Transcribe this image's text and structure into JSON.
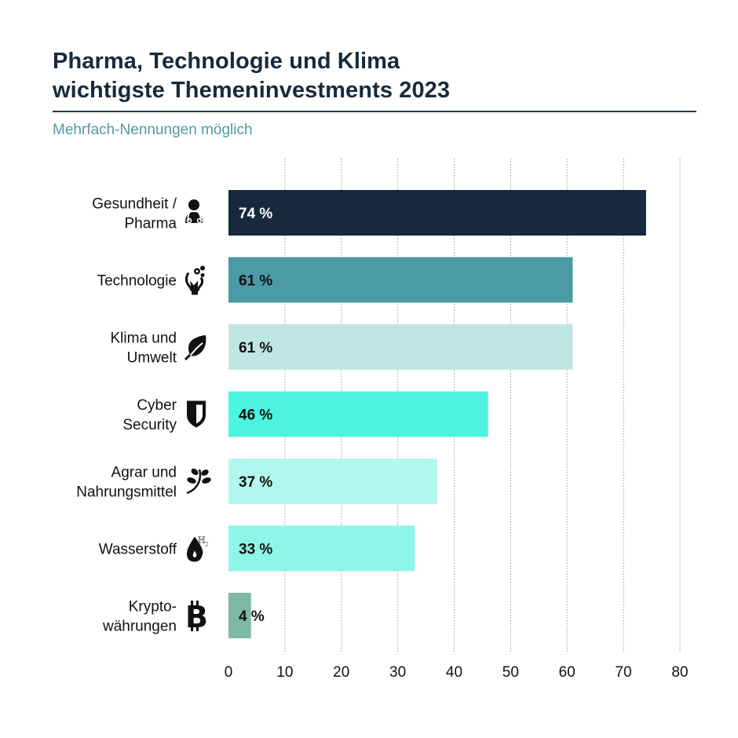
{
  "header": {
    "title_line1": "Pharma, Technologie und Klima",
    "title_line2": "wichtigste Themeninvestments 2023",
    "subtitle": "Mehrfach-Nennungen möglich"
  },
  "chart_data": {
    "type": "bar",
    "orientation": "horizontal",
    "title": "Pharma, Technologie und Klima wichtigste Themeninvestments 2023",
    "subtitle": "Mehrfach-Nennungen möglich",
    "xlabel": "",
    "ylabel": "",
    "xlim": [
      0,
      80
    ],
    "xticks": [
      0,
      10,
      20,
      30,
      40,
      50,
      60,
      70,
      80
    ],
    "grid": "vertical-dotted",
    "unit": "%",
    "categories": [
      {
        "label_lines": [
          "Gesundheit /",
          "Pharma"
        ],
        "icon": "doctor-icon",
        "value": 74,
        "value_label": "74 %",
        "color": "#17293d",
        "text_color": "#ffffff"
      },
      {
        "label_lines": [
          "Technologie"
        ],
        "icon": "lightbulb-gears-icon",
        "value": 61,
        "value_label": "61 %",
        "color": "#4a9ba5",
        "text_color": "#111111"
      },
      {
        "label_lines": [
          "Klima und",
          "Umwelt"
        ],
        "icon": "leaf-icon",
        "value": 61,
        "value_label": "61 %",
        "color": "#c0e6e3",
        "text_color": "#111111"
      },
      {
        "label_lines": [
          "Cyber",
          "Security"
        ],
        "icon": "shield-icon",
        "value": 46,
        "value_label": "46 %",
        "color": "#4cf4e0",
        "text_color": "#111111"
      },
      {
        "label_lines": [
          "Agrar und",
          "Nahrungsmittel"
        ],
        "icon": "plant-icon",
        "value": 37,
        "value_label": "37 %",
        "color": "#b3f8ee",
        "text_color": "#111111"
      },
      {
        "label_lines": [
          "Wasserstoff"
        ],
        "icon": "hydrogen-drop-icon",
        "value": 33,
        "value_label": "33 %",
        "color": "#8ef6e6",
        "text_color": "#111111"
      },
      {
        "label_lines": [
          "Krypto-",
          "währungen"
        ],
        "icon": "bitcoin-icon",
        "value": 4,
        "value_label": "4 %",
        "color": "#80b8a6",
        "text_color": "#111111"
      }
    ],
    "legend": "none"
  }
}
